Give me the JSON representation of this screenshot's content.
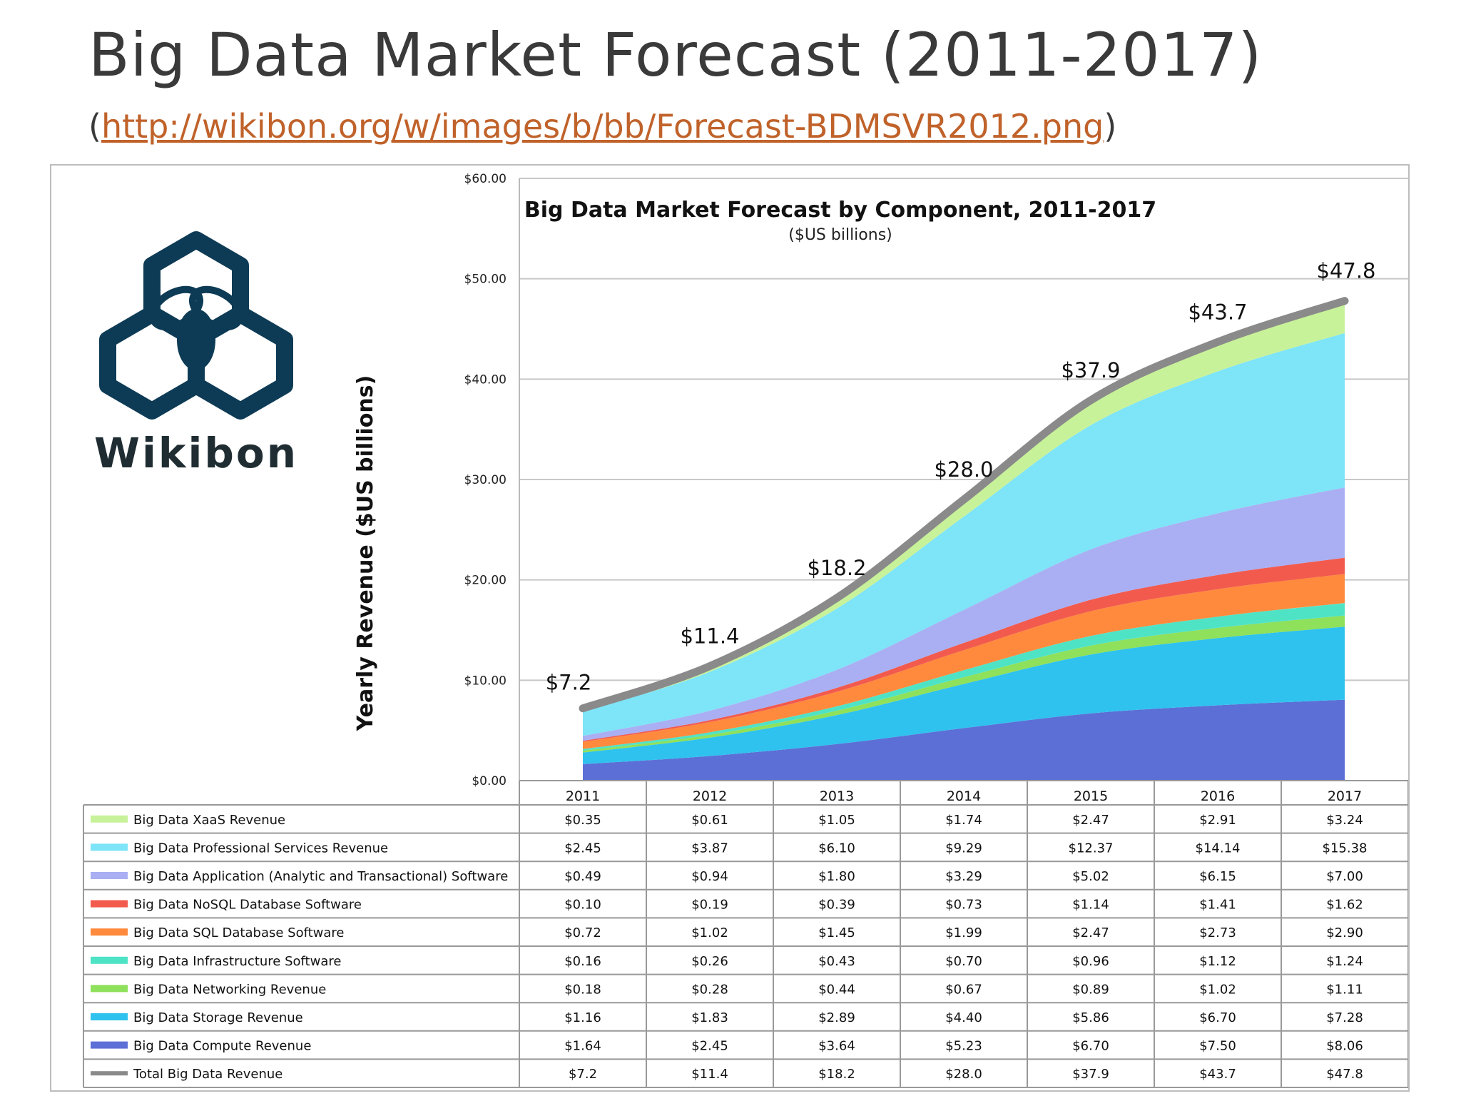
{
  "slide": {
    "title": "Big Data Market Forecast (2011-2017)",
    "source_open": "(",
    "source_url": "http://wikibon.org/w/images/b/bb/Forecast-BDMSVR2012.png",
    "source_close": ")"
  },
  "logo": {
    "text": "Wikibon",
    "color": "#0d3b55"
  },
  "chart_data": {
    "type": "area",
    "stacked": true,
    "title": "Big Data Market Forecast by Component, 2011-2017",
    "subtitle": "($US billions)",
    "xlabel": "",
    "ylabel": "Yearly Revenue ($US billions)",
    "ylim": [
      0,
      60
    ],
    "yticks": [
      "$0.00",
      "$10.00",
      "$20.00",
      "$30.00",
      "$40.00",
      "$50.00",
      "$60.00"
    ],
    "ytick_values": [
      0,
      10,
      20,
      30,
      40,
      50,
      60
    ],
    "grid": true,
    "categories": [
      "2011",
      "2012",
      "2013",
      "2014",
      "2015",
      "2016",
      "2017"
    ],
    "series": [
      {
        "name": "Big Data Compute Revenue",
        "color": "#5c6fd6",
        "values": [
          1.64,
          2.45,
          3.64,
          5.23,
          6.7,
          7.5,
          8.06
        ],
        "labels": [
          "$1.64",
          "$2.45",
          "$3.64",
          "$5.23",
          "$6.70",
          "$7.50",
          "$8.06"
        ]
      },
      {
        "name": "Big Data Storage Revenue",
        "color": "#2fc2ee",
        "values": [
          1.16,
          1.83,
          2.89,
          4.4,
          5.86,
          6.7,
          7.28
        ],
        "labels": [
          "$1.16",
          "$1.83",
          "$2.89",
          "$4.40",
          "$5.86",
          "$6.70",
          "$7.28"
        ]
      },
      {
        "name": "Big Data Networking Revenue",
        "color": "#8fe05a",
        "values": [
          0.18,
          0.28,
          0.44,
          0.67,
          0.89,
          1.02,
          1.11
        ],
        "labels": [
          "$0.18",
          "$0.28",
          "$0.44",
          "$0.67",
          "$0.89",
          "$1.02",
          "$1.11"
        ]
      },
      {
        "name": "Big Data Infrastructure Software",
        "color": "#4fe3c6",
        "values": [
          0.16,
          0.26,
          0.43,
          0.7,
          0.96,
          1.12,
          1.24
        ],
        "labels": [
          "$0.16",
          "$0.26",
          "$0.43",
          "$0.70",
          "$0.96",
          "$1.12",
          "$1.24"
        ]
      },
      {
        "name": "Big Data SQL Database Software",
        "color": "#ff8a3d",
        "values": [
          0.72,
          1.02,
          1.45,
          1.99,
          2.47,
          2.73,
          2.9
        ],
        "labels": [
          "$0.72",
          "$1.02",
          "$1.45",
          "$1.99",
          "$2.47",
          "$2.73",
          "$2.90"
        ]
      },
      {
        "name": "Big Data NoSQL Database Software",
        "color": "#f25a4e",
        "values": [
          0.1,
          0.19,
          0.39,
          0.73,
          1.14,
          1.41,
          1.62
        ],
        "labels": [
          "$0.10",
          "$0.19",
          "$0.39",
          "$0.73",
          "$1.14",
          "$1.41",
          "$1.62"
        ]
      },
      {
        "name": "Big Data Application (Analytic and Transactional) Software",
        "color": "#a9aff2",
        "values": [
          0.49,
          0.94,
          1.8,
          3.29,
          5.02,
          6.15,
          7.0
        ],
        "labels": [
          "$0.49",
          "$0.94",
          "$1.80",
          "$3.29",
          "$5.02",
          "$6.15",
          "$7.00"
        ]
      },
      {
        "name": "Big Data Professional Services Revenue",
        "color": "#7ee4f7",
        "values": [
          2.45,
          3.87,
          6.1,
          9.29,
          12.37,
          14.14,
          15.38
        ],
        "labels": [
          "$2.45",
          "$3.87",
          "$6.10",
          "$9.29",
          "$12.37",
          "$14.14",
          "$15.38"
        ]
      },
      {
        "name": "Big Data XaaS Revenue",
        "color": "#c8f29a",
        "values": [
          0.35,
          0.61,
          1.05,
          1.74,
          2.47,
          2.91,
          3.24
        ],
        "labels": [
          "$0.35",
          "$0.61",
          "$1.05",
          "$1.74",
          "$2.47",
          "$2.91",
          "$3.24"
        ]
      }
    ],
    "total": {
      "name": "Total Big Data Revenue",
      "color": "#8a8a8a",
      "values": [
        7.2,
        11.4,
        18.2,
        28.0,
        37.9,
        43.7,
        47.8
      ],
      "labels": [
        "$7.2",
        "$11.4",
        "$18.2",
        "$28.0",
        "$37.9",
        "$43.7",
        "$47.8"
      ]
    },
    "table_rows_order": [
      8,
      7,
      6,
      5,
      4,
      3,
      2,
      1,
      0
    ]
  }
}
